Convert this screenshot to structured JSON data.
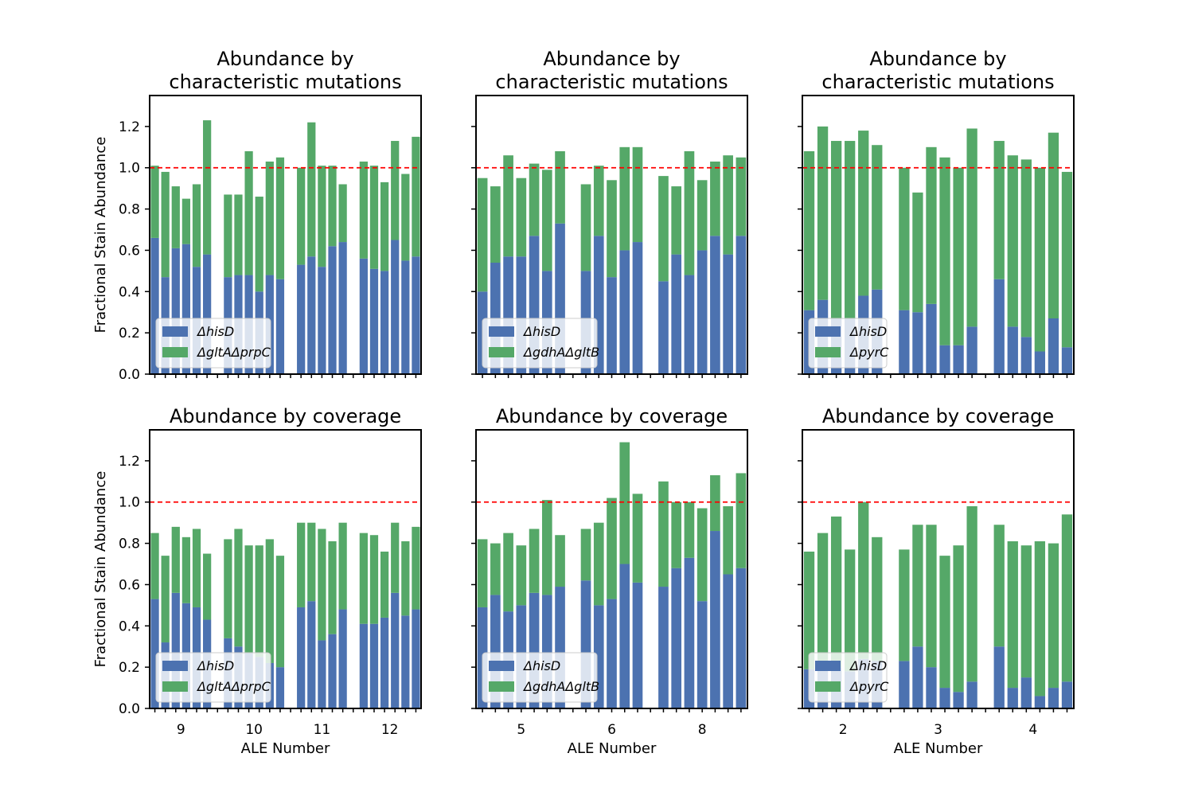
{
  "colors": {
    "hisD": "#4c72b0",
    "partner": "#55a868",
    "refline": "#ff0000"
  },
  "chart_data": [
    {
      "type": "bar",
      "title": "Abundance by\ncharacteristic mutations",
      "ylabel": "Fractional Stain Abundance",
      "xlabel": "",
      "ylim": [
        0,
        1.35
      ],
      "yticks": [
        "0.0",
        "0.2",
        "0.4",
        "0.6",
        "0.8",
        "1.0",
        "1.2"
      ],
      "reference_line": 1.0,
      "legend": {
        "placement": "lower-left",
        "entries": [
          "ΔhisD",
          "ΔgltAΔprpC"
        ]
      },
      "groups": [
        {
          "label": "9",
          "hisD": [
            0.66,
            0.47,
            0.61,
            0.63,
            0.52,
            0.58
          ],
          "partner": [
            0.35,
            0.51,
            0.3,
            0.22,
            0.4,
            0.65
          ]
        },
        {
          "label": "10",
          "hisD": [
            0.47,
            0.48,
            0.48,
            0.4,
            0.48,
            0.46
          ],
          "partner": [
            0.4,
            0.39,
            0.6,
            0.46,
            0.55,
            0.59
          ]
        },
        {
          "label": "11",
          "hisD": [
            0.53,
            0.57,
            0.52,
            0.62,
            0.64
          ],
          "partner": [
            0.47,
            0.65,
            0.49,
            0.39,
            0.28
          ]
        },
        {
          "label": "12",
          "hisD": [
            0.56,
            0.51,
            0.5,
            0.65,
            0.55,
            0.57
          ],
          "partner": [
            0.47,
            0.5,
            0.43,
            0.48,
            0.42,
            0.58
          ]
        }
      ]
    },
    {
      "type": "bar",
      "title": "Abundance by\ncharacteristic mutations",
      "ylabel": "",
      "xlabel": "",
      "ylim": [
        0,
        1.35
      ],
      "yticks": [],
      "reference_line": 1.0,
      "legend": {
        "placement": "lower-left",
        "entries": [
          "ΔhisD",
          "ΔgdhAΔgltB"
        ]
      },
      "groups": [
        {
          "label": "5",
          "hisD": [
            0.4,
            0.54,
            0.57,
            0.57,
            0.67,
            0.5,
            0.73
          ],
          "partner": [
            0.55,
            0.37,
            0.49,
            0.38,
            0.35,
            0.49,
            0.35
          ]
        },
        {
          "label": "6",
          "hisD": [
            0.5,
            0.67,
            0.47,
            0.6,
            0.64
          ],
          "partner": [
            0.42,
            0.34,
            0.47,
            0.5,
            0.46
          ]
        },
        {
          "label": "8",
          "hisD": [
            0.45,
            0.58,
            0.48,
            0.6,
            0.67,
            0.58,
            0.67
          ],
          "partner": [
            0.51,
            0.33,
            0.6,
            0.34,
            0.36,
            0.48,
            0.38
          ]
        }
      ]
    },
    {
      "type": "bar",
      "title": "Abundance by\ncharacteristic mutations",
      "ylabel": "",
      "xlabel": "",
      "ylim": [
        0,
        1.35
      ],
      "yticks": [],
      "reference_line": 1.0,
      "legend": {
        "placement": "lower-left",
        "entries": [
          "ΔhisD",
          "ΔpyrC"
        ]
      },
      "groups": [
        {
          "label": "2",
          "hisD": [
            0.31,
            0.36,
            0.27,
            0.27,
            0.38,
            0.41
          ],
          "partner": [
            0.77,
            0.84,
            0.86,
            0.86,
            0.8,
            0.7
          ]
        },
        {
          "label": "3",
          "hisD": [
            0.31,
            0.3,
            0.34,
            0.14,
            0.14,
            0.23
          ],
          "partner": [
            0.69,
            0.58,
            0.76,
            0.91,
            0.86,
            0.96
          ]
        },
        {
          "label": "4",
          "hisD": [
            0.46,
            0.23,
            0.18,
            0.11,
            0.27,
            0.13
          ],
          "partner": [
            0.67,
            0.83,
            0.86,
            0.89,
            0.9,
            0.85
          ]
        }
      ]
    },
    {
      "type": "bar",
      "title": "Abundance by coverage",
      "ylabel": "Fractional Stain Abundance",
      "xlabel": "ALE Number",
      "ylim": [
        0,
        1.35
      ],
      "yticks": [
        "0.0",
        "0.2",
        "0.4",
        "0.6",
        "0.8",
        "1.0",
        "1.2"
      ],
      "reference_line": 1.0,
      "legend": {
        "placement": "lower-left",
        "entries": [
          "ΔhisD",
          "ΔgltAΔprpC"
        ]
      },
      "groups": [
        {
          "label": "9",
          "hisD": [
            0.53,
            0.32,
            0.56,
            0.51,
            0.49,
            0.43
          ],
          "partner": [
            0.32,
            0.42,
            0.32,
            0.32,
            0.38,
            0.32
          ]
        },
        {
          "label": "10",
          "hisD": [
            0.34,
            0.3,
            0.27,
            0.25,
            0.22,
            0.2
          ],
          "partner": [
            0.48,
            0.57,
            0.52,
            0.54,
            0.6,
            0.54
          ]
        },
        {
          "label": "11",
          "hisD": [
            0.49,
            0.52,
            0.33,
            0.36,
            0.48
          ],
          "partner": [
            0.41,
            0.38,
            0.54,
            0.45,
            0.42
          ]
        },
        {
          "label": "12",
          "hisD": [
            0.41,
            0.41,
            0.44,
            0.56,
            0.45,
            0.48
          ],
          "partner": [
            0.44,
            0.43,
            0.32,
            0.34,
            0.36,
            0.4
          ]
        }
      ]
    },
    {
      "type": "bar",
      "title": "Abundance by coverage",
      "ylabel": "",
      "xlabel": "ALE Number",
      "ylim": [
        0,
        1.35
      ],
      "yticks": [],
      "reference_line": 1.0,
      "legend": {
        "placement": "lower-left",
        "entries": [
          "ΔhisD",
          "ΔgdhAΔgltB"
        ]
      },
      "groups": [
        {
          "label": "5",
          "hisD": [
            0.49,
            0.55,
            0.47,
            0.5,
            0.56,
            0.55,
            0.59
          ],
          "partner": [
            0.33,
            0.25,
            0.38,
            0.29,
            0.31,
            0.46,
            0.25
          ]
        },
        {
          "label": "6",
          "hisD": [
            0.62,
            0.5,
            0.53,
            0.7,
            0.61
          ],
          "partner": [
            0.25,
            0.4,
            0.49,
            0.59,
            0.43
          ]
        },
        {
          "label": "8",
          "hisD": [
            0.59,
            0.68,
            0.73,
            0.52,
            0.86,
            0.65,
            0.68
          ],
          "partner": [
            0.51,
            0.32,
            0.27,
            0.45,
            0.27,
            0.33,
            0.46
          ]
        }
      ]
    },
    {
      "type": "bar",
      "title": "Abundance by coverage",
      "ylabel": "",
      "xlabel": "ALE Number",
      "ylim": [
        0,
        1.35
      ],
      "yticks": [],
      "reference_line": 1.0,
      "legend": {
        "placement": "lower-left",
        "entries": [
          "ΔhisD",
          "ΔpyrC"
        ]
      },
      "groups": [
        {
          "label": "2",
          "hisD": [
            0.19,
            0.22,
            0.2,
            0.18,
            0.24,
            0.23
          ],
          "partner": [
            0.57,
            0.63,
            0.73,
            0.59,
            0.76,
            0.6
          ]
        },
        {
          "label": "3",
          "hisD": [
            0.23,
            0.3,
            0.2,
            0.1,
            0.08,
            0.13
          ],
          "partner": [
            0.54,
            0.59,
            0.69,
            0.64,
            0.71,
            0.85
          ]
        },
        {
          "label": "4",
          "hisD": [
            0.3,
            0.1,
            0.15,
            0.06,
            0.1,
            0.13
          ],
          "partner": [
            0.59,
            0.71,
            0.64,
            0.75,
            0.7,
            0.81
          ]
        }
      ]
    }
  ]
}
